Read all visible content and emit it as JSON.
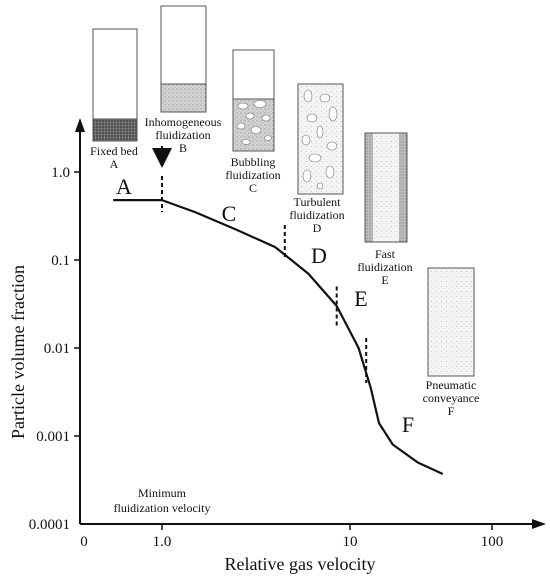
{
  "axes": {
    "ylabel": "Particle volume fraction",
    "xlabel": "Relative gas velocity",
    "x_ticks": [
      "0",
      "1.0",
      "10",
      "100"
    ],
    "y_ticks": [
      "1.0",
      "0.1",
      "0.01",
      "0.001",
      "0.0001"
    ],
    "x_scale": "log",
    "y_scale": "log"
  },
  "curve": {
    "points": [
      [
        0.55,
        0.48
      ],
      [
        1.0,
        0.48
      ],
      [
        1.5,
        0.35
      ],
      [
        2.5,
        0.22
      ],
      [
        4.0,
        0.14
      ],
      [
        6.0,
        0.07
      ],
      [
        8.5,
        0.03
      ],
      [
        11.5,
        0.01
      ],
      [
        14.0,
        0.0035
      ],
      [
        16.0,
        0.0014
      ],
      [
        20.0,
        0.0008
      ],
      [
        30.0,
        0.0005
      ],
      [
        45.0,
        0.00037
      ]
    ]
  },
  "boundaries": [
    {
      "x": 1.0,
      "y_from": 0.35,
      "y_to": 0.9
    },
    {
      "x": 4.5,
      "y_from": 0.1,
      "y_to": 0.25
    },
    {
      "x": 8.5,
      "y_from": 0.018,
      "y_to": 0.05
    },
    {
      "x": 13.0,
      "y_from": 0.004,
      "y_to": 0.013
    }
  ],
  "stage_letters": [
    "A",
    "C",
    "D",
    "E",
    "F"
  ],
  "stages": [
    {
      "id": "A",
      "name": "Fixed bed",
      "letter": "A"
    },
    {
      "id": "B",
      "name": "Inhomogeneous",
      "name2": "fluidization",
      "letter": "B"
    },
    {
      "id": "C",
      "name": "Bubbling",
      "name2": "fluidization",
      "letter": "C"
    },
    {
      "id": "D",
      "name": "Turbulent",
      "name2": "fluidization",
      "letter": "D"
    },
    {
      "id": "E",
      "name": "Fast",
      "name2": "fluidization",
      "letter": "E"
    },
    {
      "id": "F",
      "name": "Pneumatic",
      "name2": "conveyance",
      "letter": "F"
    }
  ],
  "min_label": {
    "line1": "Minimum",
    "line2": "fluidization velocity"
  }
}
